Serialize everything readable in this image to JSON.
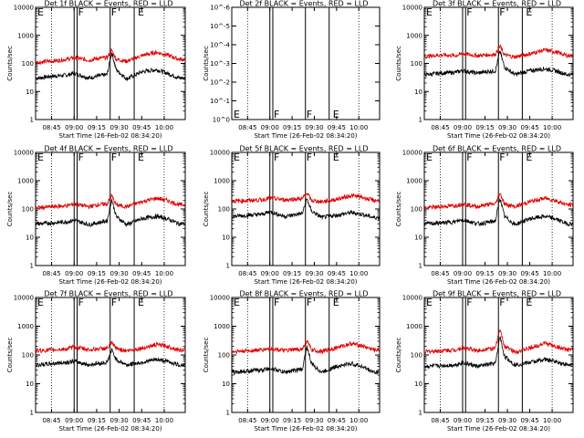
{
  "figure": {
    "colors": {
      "events": "#000000",
      "lld": "#e00000",
      "background": "#ffffff"
    }
  },
  "chart_data": [
    {
      "type": "line",
      "title": "Det 1f BLACK = Events, RED = LLD",
      "xlabel": "Start Time (26-Feb-02 08:34:20)",
      "ylabel": "Counts/sec",
      "y_scale": "log",
      "ylim": [
        1,
        10000
      ],
      "y_ticks": [
        "1",
        "10",
        "100",
        "1000",
        "10000"
      ],
      "x_ticks": [
        "08:45",
        "09:00",
        "09:15",
        "09:30",
        "09:45",
        "10:00"
      ],
      "event_lines": [
        "09:00",
        "09:02",
        "09:24",
        "09:40"
      ],
      "flags": [
        "E",
        "F",
        "F",
        "E"
      ],
      "series": [
        {
          "name": "Events",
          "color": "#000000",
          "x": [
            "08:36",
            "08:45",
            "08:55",
            "09:00",
            "09:10",
            "09:15",
            "09:22",
            "09:25",
            "09:28",
            "09:35",
            "09:45",
            "09:55",
            "10:02",
            "10:10"
          ],
          "values": [
            30,
            35,
            38,
            45,
            30,
            35,
            40,
            250,
            60,
            28,
            50,
            60,
            45,
            30
          ]
        },
        {
          "name": "LLD",
          "color": "#e00000",
          "x": [
            "08:36",
            "08:45",
            "08:55",
            "09:00",
            "09:10",
            "09:15",
            "09:22",
            "09:25",
            "09:28",
            "09:35",
            "09:45",
            "09:55",
            "10:02",
            "10:10"
          ],
          "values": [
            110,
            120,
            140,
            160,
            130,
            150,
            160,
            300,
            140,
            120,
            190,
            250,
            200,
            140
          ]
        }
      ]
    },
    {
      "type": "line",
      "title": "Det 2f BLACK = Events, RED = LLD",
      "xlabel": "Start Time (26-Feb-02 08:34:20)",
      "ylabel": "Counts/sec",
      "y_scale": "log",
      "ylim": [
        1,
        1e-06
      ],
      "y_ticks": [
        "10^0",
        "10^-1",
        "10^-2",
        "10^-3",
        "10^-4",
        "10^-5",
        "10^-6"
      ],
      "x_ticks": [
        "08:45",
        "09:00",
        "09:15",
        "09:30",
        "09:45",
        "10:00"
      ],
      "event_lines": [
        "09:00",
        "09:02",
        "09:24",
        "09:40"
      ],
      "flags": [
        "E",
        "F",
        "F",
        "E"
      ],
      "series": []
    },
    {
      "type": "line",
      "title": "Det 3f BLACK = Events, RED = LLD",
      "xlabel": "Start Time (26-Feb-02 08:34:20)",
      "ylabel": "Counts/sec",
      "y_scale": "log",
      "ylim": [
        1,
        10000
      ],
      "y_ticks": [
        "1",
        "10",
        "100",
        "1000",
        "10000"
      ],
      "x_ticks": [
        "08:45",
        "09:00",
        "09:15",
        "09:30",
        "09:45",
        "10:00"
      ],
      "event_lines": [
        "09:00",
        "09:02",
        "09:24",
        "09:40"
      ],
      "flags": [
        "E",
        "F",
        "F",
        "E"
      ],
      "series": [
        {
          "name": "Events",
          "color": "#000000",
          "x": [
            "08:36",
            "08:45",
            "08:55",
            "09:00",
            "09:10",
            "09:15",
            "09:22",
            "09:25",
            "09:28",
            "09:35",
            "09:45",
            "09:55",
            "10:02",
            "10:10"
          ],
          "values": [
            40,
            45,
            48,
            55,
            45,
            50,
            55,
            280,
            75,
            40,
            55,
            65,
            55,
            40
          ]
        },
        {
          "name": "LLD",
          "color": "#e00000",
          "x": [
            "08:36",
            "08:45",
            "08:55",
            "09:00",
            "09:10",
            "09:15",
            "09:22",
            "09:25",
            "09:28",
            "09:35",
            "09:45",
            "09:55",
            "10:02",
            "10:10"
          ],
          "values": [
            180,
            200,
            190,
            220,
            190,
            200,
            210,
            420,
            200,
            170,
            220,
            300,
            260,
            190
          ]
        }
      ]
    },
    {
      "type": "line",
      "title": "Det 4f BLACK = Events, RED = LLD",
      "xlabel": "Start Time (26-Feb-02 08:34:20)",
      "ylabel": "Counts/sec",
      "y_scale": "log",
      "ylim": [
        1,
        10000
      ],
      "y_ticks": [
        "1",
        "10",
        "100",
        "1000",
        "10000"
      ],
      "x_ticks": [
        "08:45",
        "09:00",
        "09:15",
        "09:30",
        "09:45",
        "10:00"
      ],
      "event_lines": [
        "09:00",
        "09:02",
        "09:24",
        "09:40"
      ],
      "flags": [
        "E",
        "F",
        "F",
        "E"
      ],
      "series": [
        {
          "name": "Events",
          "color": "#000000",
          "x": [
            "08:36",
            "08:45",
            "08:55",
            "09:00",
            "09:10",
            "09:15",
            "09:22",
            "09:25",
            "09:28",
            "09:35",
            "09:45",
            "09:55",
            "10:02",
            "10:10"
          ],
          "values": [
            30,
            32,
            35,
            40,
            28,
            32,
            38,
            220,
            55,
            28,
            45,
            55,
            45,
            30
          ]
        },
        {
          "name": "LLD",
          "color": "#e00000",
          "x": [
            "08:36",
            "08:45",
            "08:55",
            "09:00",
            "09:10",
            "09:15",
            "09:22",
            "09:25",
            "09:28",
            "09:35",
            "09:45",
            "09:55",
            "10:02",
            "10:10"
          ],
          "values": [
            110,
            120,
            130,
            150,
            120,
            140,
            150,
            300,
            140,
            120,
            180,
            240,
            200,
            140
          ]
        }
      ]
    },
    {
      "type": "line",
      "title": "Det 5f BLACK = Events, RED = LLD",
      "xlabel": "Start Time (26-Feb-02 08:34:20)",
      "ylabel": "Counts/sec",
      "y_scale": "log",
      "ylim": [
        1,
        10000
      ],
      "y_ticks": [
        "1",
        "10",
        "100",
        "1000",
        "10000"
      ],
      "x_ticks": [
        "08:45",
        "09:00",
        "09:15",
        "09:30",
        "09:45",
        "10:00"
      ],
      "event_lines": [
        "09:00",
        "09:02",
        "09:24",
        "09:40"
      ],
      "flags": [
        "E",
        "F",
        "F",
        "E"
      ],
      "series": [
        {
          "name": "Events",
          "color": "#000000",
          "x": [
            "08:36",
            "08:45",
            "08:55",
            "09:00",
            "09:10",
            "09:15",
            "09:22",
            "09:25",
            "09:28",
            "09:35",
            "09:45",
            "09:55",
            "10:02",
            "10:10"
          ],
          "values": [
            55,
            60,
            65,
            80,
            55,
            60,
            70,
            230,
            85,
            50,
            60,
            75,
            65,
            50
          ]
        },
        {
          "name": "LLD",
          "color": "#e00000",
          "x": [
            "08:36",
            "08:45",
            "08:55",
            "09:00",
            "09:10",
            "09:15",
            "09:22",
            "09:25",
            "09:28",
            "09:35",
            "09:45",
            "09:55",
            "10:02",
            "10:10"
          ],
          "values": [
            190,
            200,
            210,
            240,
            210,
            220,
            230,
            380,
            200,
            180,
            220,
            300,
            260,
            200
          ]
        }
      ]
    },
    {
      "type": "line",
      "title": "Det 6f BLACK = Events, RED = LLD",
      "xlabel": "Start Time (26-Feb-02 08:34:20)",
      "ylabel": "Counts/sec",
      "y_scale": "log",
      "ylim": [
        1,
        10000
      ],
      "y_ticks": [
        "1",
        "10",
        "100",
        "1000",
        "10000"
      ],
      "x_ticks": [
        "08:45",
        "09:00",
        "09:15",
        "09:30",
        "09:45",
        "10:00"
      ],
      "event_lines": [
        "09:00",
        "09:02",
        "09:24",
        "09:40"
      ],
      "flags": [
        "E",
        "F",
        "F",
        "E"
      ],
      "series": [
        {
          "name": "Events",
          "color": "#000000",
          "x": [
            "08:36",
            "08:45",
            "08:55",
            "09:00",
            "09:10",
            "09:15",
            "09:22",
            "09:25",
            "09:28",
            "09:35",
            "09:45",
            "09:55",
            "10:02",
            "10:10"
          ],
          "values": [
            30,
            32,
            35,
            42,
            30,
            32,
            38,
            250,
            55,
            28,
            45,
            55,
            45,
            30
          ]
        },
        {
          "name": "LLD",
          "color": "#e00000",
          "x": [
            "08:36",
            "08:45",
            "08:55",
            "09:00",
            "09:10",
            "09:15",
            "09:22",
            "09:25",
            "09:28",
            "09:35",
            "09:45",
            "09:55",
            "10:02",
            "10:10"
          ],
          "values": [
            110,
            120,
            130,
            150,
            120,
            140,
            150,
            380,
            150,
            120,
            180,
            240,
            200,
            140
          ]
        }
      ]
    },
    {
      "type": "line",
      "title": "Det 7f BLACK = Events, RED = LLD",
      "xlabel": "Start Time (26-Feb-02 08:34:20)",
      "ylabel": "Counts/sec",
      "y_scale": "log",
      "ylim": [
        1,
        10000
      ],
      "y_ticks": [
        "1",
        "10",
        "100",
        "1000",
        "10000"
      ],
      "x_ticks": [
        "08:45",
        "09:00",
        "09:15",
        "09:30",
        "09:45",
        "10:00"
      ],
      "event_lines": [
        "09:00",
        "09:02",
        "09:24",
        "09:40"
      ],
      "flags": [
        "E",
        "F",
        "F",
        "E"
      ],
      "series": [
        {
          "name": "Events",
          "color": "#000000",
          "x": [
            "08:36",
            "08:45",
            "08:55",
            "09:00",
            "09:10",
            "09:15",
            "09:22",
            "09:25",
            "09:28",
            "09:35",
            "09:45",
            "09:55",
            "10:02",
            "10:10"
          ],
          "values": [
            45,
            50,
            55,
            60,
            45,
            50,
            55,
            150,
            70,
            45,
            55,
            70,
            60,
            45
          ]
        },
        {
          "name": "LLD",
          "color": "#e00000",
          "x": [
            "08:36",
            "08:45",
            "08:55",
            "09:00",
            "09:10",
            "09:15",
            "09:22",
            "09:25",
            "09:28",
            "09:35",
            "09:45",
            "09:55",
            "10:02",
            "10:10"
          ],
          "values": [
            140,
            150,
            160,
            190,
            150,
            160,
            170,
            260,
            170,
            140,
            170,
            230,
            200,
            150
          ]
        }
      ]
    },
    {
      "type": "line",
      "title": "Det 8f BLACK = Events, RED = LLD",
      "xlabel": "Start Time (26-Feb-02 08:34:20)",
      "ylabel": "Counts/sec",
      "y_scale": "log",
      "ylim": [
        1,
        10000
      ],
      "y_ticks": [
        "1",
        "10",
        "100",
        "1000",
        "10000"
      ],
      "x_ticks": [
        "08:45",
        "09:00",
        "09:15",
        "09:30",
        "09:45",
        "10:00"
      ],
      "event_lines": [
        "09:00",
        "09:02",
        "09:24",
        "09:40"
      ],
      "flags": [
        "E",
        "F",
        "F",
        "E"
      ],
      "series": [
        {
          "name": "Events",
          "color": "#000000",
          "x": [
            "08:36",
            "08:45",
            "08:55",
            "09:00",
            "09:10",
            "09:15",
            "09:22",
            "09:25",
            "09:28",
            "09:35",
            "09:45",
            "09:55",
            "10:02",
            "10:10"
          ],
          "values": [
            25,
            28,
            30,
            35,
            25,
            28,
            32,
            200,
            50,
            25,
            40,
            50,
            40,
            25
          ]
        },
        {
          "name": "LLD",
          "color": "#e00000",
          "x": [
            "08:36",
            "08:45",
            "08:55",
            "09:00",
            "09:10",
            "09:15",
            "09:22",
            "09:25",
            "09:28",
            "09:35",
            "09:45",
            "09:55",
            "10:02",
            "10:10"
          ],
          "values": [
            130,
            140,
            150,
            170,
            140,
            150,
            160,
            320,
            150,
            130,
            180,
            250,
            210,
            150
          ]
        }
      ]
    },
    {
      "type": "line",
      "title": "Det 9f BLACK = Events, RED = LLD",
      "xlabel": "Start Time (26-Feb-02 08:34:20)",
      "ylabel": "Counts/sec",
      "y_scale": "log",
      "ylim": [
        1,
        10000
      ],
      "y_ticks": [
        "1",
        "10",
        "100",
        "1000",
        "10000"
      ],
      "x_ticks": [
        "08:45",
        "09:00",
        "09:15",
        "09:30",
        "09:45",
        "10:00"
      ],
      "event_lines": [
        "09:00",
        "09:02",
        "09:24",
        "09:40"
      ],
      "flags": [
        "E",
        "F",
        "F",
        "E"
      ],
      "series": [
        {
          "name": "Events",
          "color": "#000000",
          "x": [
            "08:36",
            "08:45",
            "08:55",
            "09:00",
            "09:10",
            "09:15",
            "09:22",
            "09:25",
            "09:28",
            "09:35",
            "09:45",
            "09:55",
            "10:02",
            "10:10"
          ],
          "values": [
            40,
            42,
            45,
            55,
            40,
            45,
            50,
            450,
            90,
            45,
            55,
            70,
            60,
            45
          ]
        },
        {
          "name": "LLD",
          "color": "#e00000",
          "x": [
            "08:36",
            "08:45",
            "08:55",
            "09:00",
            "09:10",
            "09:15",
            "09:22",
            "09:25",
            "09:28",
            "09:35",
            "09:45",
            "09:55",
            "10:02",
            "10:10"
          ],
          "values": [
            130,
            140,
            150,
            180,
            140,
            160,
            170,
            800,
            200,
            130,
            170,
            260,
            200,
            150
          ]
        }
      ]
    }
  ]
}
